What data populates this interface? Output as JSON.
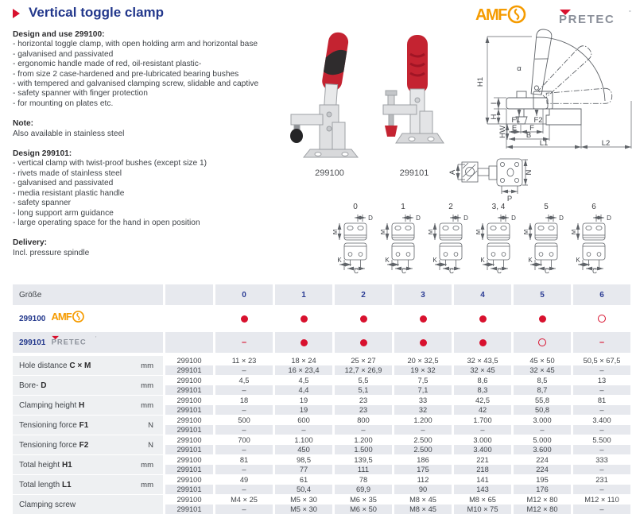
{
  "header": {
    "title": "Vertical toggle clamp",
    "brand_amf": "AMF",
    "brand_pretec": "PRETEC",
    "pretec_degree": "°"
  },
  "colors": {
    "accent_red": "#d8112e",
    "heading_blue": "#23388c",
    "table_number_blue": "#2b3c94",
    "amf_orange": "#f59b00",
    "pretec_gray": "#8b909a",
    "row_gray": "#e7e9ee",
    "label_gray": "#eef0f2"
  },
  "description": {
    "sections": [
      {
        "heading": "Design and use 299100:",
        "lines": [
          "- horizontal toggle clamp, with open holding arm and horizontal base",
          "- galvanised and passivated",
          "- ergonomic handle made of red, oil-resistant plastic-",
          "- from size 2 case-hardened and pre-lubricated bearing bushes",
          "- with tempered and galvanised clamping screw, slidable and captive",
          "- safety spanner with finger protection",
          "- for mounting on plates etc."
        ]
      },
      {
        "heading": "Note:",
        "lines": [
          "Also available in stainless steel"
        ]
      },
      {
        "heading": "Design 299101:",
        "lines": [
          "- vertical clamp with twist-proof bushes (except size 1)",
          "- rivets made of stainless steel",
          "- galvanised and passivated",
          "- media resistant plastic handle",
          "- safety spanner",
          "- long support arm guidance",
          "- large operating space for the hand in open position"
        ]
      },
      {
        "heading": "Delivery:",
        "lines": [
          "Incl. pressure spindle"
        ]
      }
    ]
  },
  "products": [
    {
      "caption": "299100"
    },
    {
      "caption": "299101"
    }
  ],
  "diagram": {
    "dims": {
      "h1": "H1",
      "alpha": "α",
      "i": "I",
      "h": "H",
      "hw": "HW",
      "f1": "F1",
      "f2": "F2",
      "e": "E",
      "f": "F",
      "b": "B",
      "l1": "L1",
      "l2": "L2",
      "a": "A",
      "n": "N",
      "p": "P",
      "d": "D",
      "m": "M",
      "k": "K",
      "c": "C"
    },
    "size_variants": [
      "0",
      "1",
      "2",
      "3, 4",
      "5",
      "6"
    ]
  },
  "table": {
    "size_label": "Größe",
    "sizes": [
      "0",
      "1",
      "2",
      "3",
      "4",
      "5",
      "6"
    ],
    "variant_labels": [
      "299100",
      "299101"
    ],
    "availability": [
      {
        "product": "299100",
        "brand": "amf",
        "marks": [
          "dot",
          "dot",
          "dot",
          "dot",
          "dot",
          "dot",
          "ring"
        ]
      },
      {
        "product": "299101",
        "brand": "pretec",
        "marks": [
          "dash",
          "dot",
          "dot",
          "dot",
          "dot",
          "ring",
          "dash"
        ]
      }
    ],
    "spec_rows": [
      {
        "label": "Hole distance ",
        "bold": "C × M",
        "unit": "mm",
        "r100": [
          "11 × 23",
          "18 × 24",
          "25 × 27",
          "20 × 32,5",
          "32 × 43,5",
          "45 × 50",
          "50,5 × 67,5"
        ],
        "r101": [
          "–",
          "16 × 23,4",
          "12,7 × 26,9",
          "19 × 32",
          "32 × 45",
          "32 × 45",
          "–"
        ]
      },
      {
        "label": "Bore- ",
        "bold": "D",
        "unit": "mm",
        "r100": [
          "4,5",
          "4,5",
          "5,5",
          "7,5",
          "8,6",
          "8,5",
          "13"
        ],
        "r101": [
          "–",
          "4,4",
          "5,1",
          "7,1",
          "8,3",
          "8,7",
          "–"
        ]
      },
      {
        "label": "Clamping height ",
        "bold": "H",
        "unit": "mm",
        "r100": [
          "18",
          "19",
          "23",
          "33",
          "42,5",
          "55,8",
          "81"
        ],
        "r101": [
          "–",
          "19",
          "23",
          "32",
          "42",
          "50,8",
          "–"
        ]
      },
      {
        "label": "Tensioning force ",
        "bold": "F1",
        "unit": "N",
        "r100": [
          "500",
          "600",
          "800",
          "1.200",
          "1.700",
          "3.000",
          "3.400"
        ],
        "r101": [
          "–",
          "–",
          "–",
          "–",
          "–",
          "–",
          "–"
        ]
      },
      {
        "label": "Tensioning force ",
        "bold": "F2",
        "unit": "N",
        "r100": [
          "700",
          "1.100",
          "1.200",
          "2.500",
          "3.000",
          "5.000",
          "5.500"
        ],
        "r101": [
          "–",
          "450",
          "1.500",
          "2.500",
          "3.400",
          "3.600",
          "–"
        ]
      },
      {
        "label": "Total height ",
        "bold": "H1",
        "unit": "mm",
        "r100": [
          "81",
          "98,5",
          "139,5",
          "186",
          "221",
          "224",
          "333"
        ],
        "r101": [
          "–",
          "77",
          "111",
          "175",
          "218",
          "224",
          "–"
        ]
      },
      {
        "label": "Total length ",
        "bold": "L1",
        "unit": "mm",
        "r100": [
          "49",
          "61",
          "78",
          "112",
          "141",
          "195",
          "231"
        ],
        "r101": [
          "–",
          "50,4",
          "69,9",
          "90",
          "143",
          "176",
          "–"
        ]
      },
      {
        "label": "Clamping screw",
        "bold": "",
        "unit": "",
        "r100": [
          "M4 × 25",
          "M5 × 30",
          "M6 × 35",
          "M8 × 45",
          "M8 × 65",
          "M12 × 80",
          "M12 × 110"
        ],
        "r101": [
          "–",
          "M5 × 30",
          "M6 × 50",
          "M8 × 45",
          "M10 × 75",
          "M12 × 80",
          "–"
        ]
      }
    ]
  }
}
